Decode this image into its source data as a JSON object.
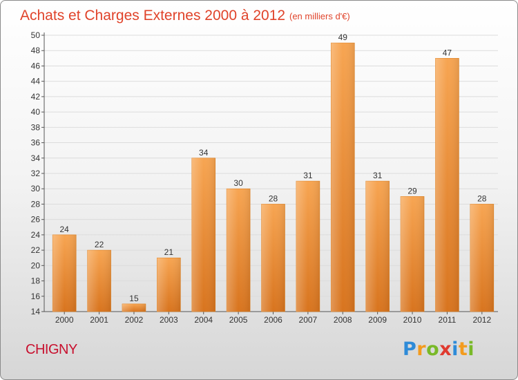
{
  "chart_data": {
    "type": "bar",
    "title": "Achats et Charges Externes 2000 à 2012",
    "subtitle": "(en milliers d'€)",
    "categories": [
      "2000",
      "2001",
      "2002",
      "2003",
      "2004",
      "2005",
      "2006",
      "2007",
      "2008",
      "2009",
      "2010",
      "2011",
      "2012"
    ],
    "values": [
      24,
      22,
      15,
      21,
      34,
      30,
      28,
      31,
      49,
      31,
      29,
      47,
      28
    ],
    "ylim": [
      14,
      50
    ],
    "yticks": [
      14,
      16,
      18,
      20,
      22,
      24,
      26,
      28,
      30,
      32,
      34,
      36,
      38,
      40,
      42,
      44,
      46,
      48,
      50
    ],
    "xlabel": "",
    "ylabel": "",
    "grid": true,
    "bar_color": "#f0922e"
  },
  "footer": {
    "place": "CHIGNY",
    "brand_letters": [
      {
        "ch": "P",
        "color": "#2e8bd8"
      },
      {
        "ch": "r",
        "color": "#f39b1e"
      },
      {
        "ch": "o",
        "color": "#79b928"
      },
      {
        "ch": "x",
        "color": "#e03a2f"
      },
      {
        "ch": "i",
        "color": "#2e8bd8"
      },
      {
        "ch": "t",
        "color": "#f39b1e"
      },
      {
        "ch": "i",
        "color": "#79b928"
      }
    ],
    "brand": "Proxiti"
  }
}
